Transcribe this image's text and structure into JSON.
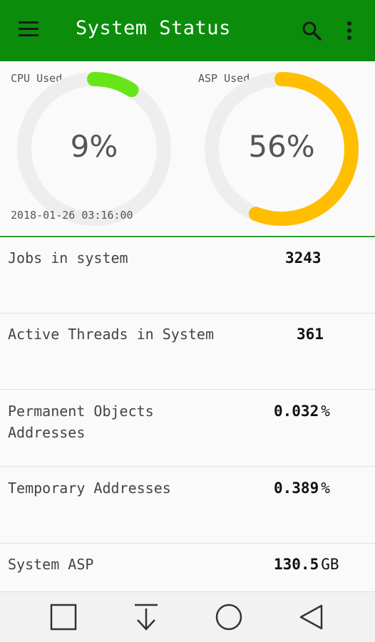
{
  "appbar": {
    "title": "System Status",
    "icons": [
      "menu-icon",
      "search-icon",
      "more-vert-icon"
    ],
    "color": "#0b8c0b"
  },
  "gauges": {
    "cpu": {
      "label": "CPU Used",
      "value_text": "9%",
      "percent": 9,
      "color": "#66e619"
    },
    "asp": {
      "label": "ASP Used",
      "value_text": "56%",
      "percent": 56,
      "color": "#ffbf00"
    },
    "track_color": "#eeeeee",
    "timestamp": "2018-01-26 03:16:00"
  },
  "metrics": [
    {
      "label": "Jobs in system",
      "value": "3243",
      "unit": ""
    },
    {
      "label": "Active Threads in System",
      "value": "361",
      "unit": ""
    },
    {
      "label": "Permanent Objects Addresses",
      "value": "0.032",
      "unit": "%"
    },
    {
      "label": "Temporary Addresses",
      "value": "0.389",
      "unit": "%"
    },
    {
      "label": "System ASP",
      "value": "130.5",
      "unit": "GB"
    }
  ],
  "navbar": {
    "icons": [
      "recents-square-icon",
      "download-arrow-icon",
      "home-circle-icon",
      "back-triangle-icon"
    ]
  }
}
